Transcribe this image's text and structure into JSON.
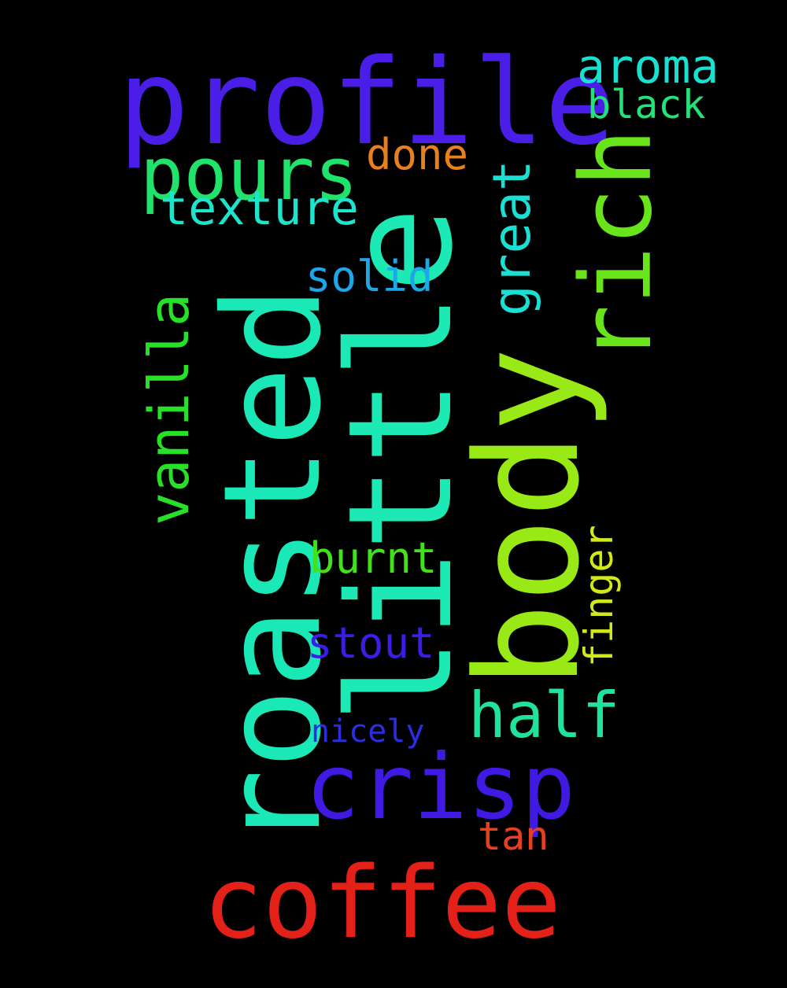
{
  "words": {
    "profile": "profile",
    "coffee": "coffee",
    "crisp": "crisp",
    "roasted": "roasted",
    "little": "little",
    "body": "body",
    "rich": "rich",
    "pours": "pours",
    "texture": "texture",
    "aroma": "aroma",
    "black": "black",
    "done": "done",
    "great": "great",
    "solid": "solid",
    "vanilla": "vanilla",
    "burnt": "burnt",
    "stout": "stout",
    "finger": "finger",
    "half": "half",
    "nicely": "nicely",
    "tan": "tan"
  },
  "colors": {
    "background": "#000000",
    "profile": "#4a1ee6",
    "coffee": "#e42119",
    "crisp": "#4019e3",
    "roasted": "#1be8b7",
    "little": "#1ce9b4",
    "body": "#98e915",
    "rich": "#67e51a",
    "pours": "#1fe36b",
    "texture": "#1de4cc",
    "aroma": "#1ae0d2",
    "black": "#22e37a",
    "done": "#e8801d",
    "great": "#1ae0d4",
    "solid": "#1da6e8",
    "vanilla": "#27e028",
    "burnt": "#42e21a",
    "stout": "#3b1ee6",
    "finger": "#d1e81b",
    "half": "#1fe39a",
    "nicely": "#2a2ee0",
    "tan": "#e8401d"
  }
}
